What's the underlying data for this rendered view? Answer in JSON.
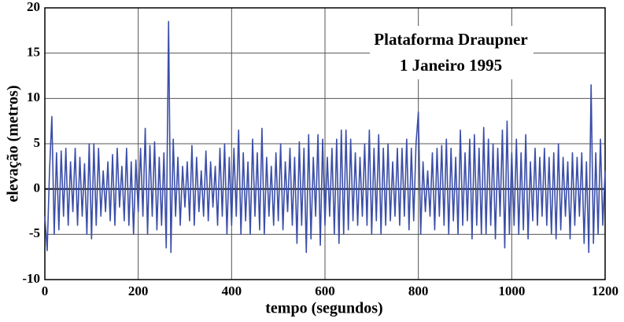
{
  "chart_data": {
    "type": "line",
    "title": "Plataforma Draupner",
    "subtitle": "1 Janeiro 1995",
    "xlabel": "tempo (segundos)",
    "ylabel": "elevação (metros)",
    "xlim": [
      0,
      1200
    ],
    "ylim": [
      -10,
      20
    ],
    "xticks": [
      0,
      200,
      400,
      600,
      800,
      1000,
      1200
    ],
    "yticks": [
      -10,
      -5,
      0,
      5,
      10,
      15,
      20
    ],
    "grid": true,
    "x": [
      0,
      5,
      10,
      15,
      20,
      25,
      30,
      35,
      40,
      45,
      50,
      55,
      60,
      65,
      70,
      75,
      80,
      85,
      90,
      95,
      100,
      105,
      110,
      115,
      120,
      125,
      130,
      135,
      140,
      145,
      150,
      155,
      160,
      165,
      170,
      175,
      180,
      185,
      190,
      195,
      200,
      205,
      210,
      215,
      220,
      225,
      230,
      235,
      240,
      245,
      250,
      255,
      260,
      265,
      270,
      275,
      280,
      285,
      290,
      295,
      300,
      305,
      310,
      315,
      320,
      325,
      330,
      335,
      340,
      345,
      350,
      355,
      360,
      365,
      370,
      375,
      380,
      385,
      390,
      395,
      400,
      405,
      410,
      415,
      420,
      425,
      430,
      435,
      440,
      445,
      450,
      455,
      460,
      465,
      470,
      475,
      480,
      485,
      490,
      495,
      500,
      505,
      510,
      515,
      520,
      525,
      530,
      535,
      540,
      545,
      550,
      555,
      560,
      565,
      570,
      575,
      580,
      585,
      590,
      595,
      600,
      605,
      610,
      615,
      620,
      625,
      630,
      635,
      640,
      645,
      650,
      655,
      660,
      665,
      670,
      675,
      680,
      685,
      690,
      695,
      700,
      705,
      710,
      715,
      720,
      725,
      730,
      735,
      740,
      745,
      750,
      755,
      760,
      765,
      770,
      775,
      780,
      785,
      790,
      795,
      800,
      805,
      810,
      815,
      820,
      825,
      830,
      835,
      840,
      845,
      850,
      855,
      860,
      865,
      870,
      875,
      880,
      885,
      890,
      895,
      900,
      905,
      910,
      915,
      920,
      925,
      930,
      935,
      940,
      945,
      950,
      955,
      960,
      965,
      970,
      975,
      980,
      985,
      990,
      995,
      1000,
      1005,
      1010,
      1015,
      1020,
      1025,
      1030,
      1035,
      1040,
      1045,
      1050,
      1055,
      1060,
      1065,
      1070,
      1075,
      1080,
      1085,
      1090,
      1095,
      1100,
      1105,
      1110,
      1115,
      1120,
      1125,
      1130,
      1135,
      1140,
      1145,
      1150,
      1155,
      1160,
      1165,
      1170,
      1175,
      1180,
      1185,
      1190,
      1195,
      1200
    ],
    "series": [
      {
        "color": "#3b4ea8",
        "values": [
          -3,
          -6.8,
          2,
          8,
          -5,
          4,
          -4.5,
          4.2,
          -3,
          4.5,
          -4,
          3,
          -2.5,
          4.5,
          -4,
          3.5,
          -3,
          2.8,
          -5,
          5,
          -5.5,
          5,
          -4,
          4.5,
          -3,
          2,
          -2.5,
          3,
          -3.5,
          3.8,
          -4,
          4.5,
          -2,
          2.5,
          -3.5,
          4.5,
          -4,
          3,
          -5,
          3.2,
          -2.5,
          4.5,
          -3,
          6.7,
          -5,
          4.8,
          -3,
          5.2,
          -4.5,
          3.5,
          -4,
          4,
          -6.5,
          18.5,
          -7,
          5.5,
          -3,
          3.5,
          -4,
          2.5,
          -2,
          3,
          -3.5,
          4.8,
          -4,
          3.5,
          -2.5,
          2,
          -3,
          4.2,
          -3.5,
          3,
          -2,
          2.5,
          -4,
          4.5,
          -3,
          5,
          -5,
          3.5,
          -4,
          4.5,
          -3,
          6.5,
          -5,
          4,
          -3.5,
          3,
          -5,
          5.5,
          -3,
          4,
          -4.5,
          6.7,
          -5,
          3.5,
          -3,
          2.5,
          -4,
          4,
          -3.5,
          5,
          -4.5,
          3,
          -2.5,
          4.5,
          -4,
          3.5,
          -6,
          5.2,
          -4,
          4.5,
          -7,
          6,
          -5.5,
          3.5,
          -3,
          6,
          -6.2,
          5.5,
          -4,
          3.5,
          -3,
          4.5,
          -5,
          5.5,
          -6,
          6.5,
          -5,
          6.5,
          -4.5,
          5.5,
          -3.5,
          4,
          -4,
          3.5,
          -3,
          5,
          -4,
          6.5,
          -5,
          4.5,
          -3.5,
          6,
          -5,
          4.5,
          -4,
          5,
          -3.5,
          3,
          -3,
          4.5,
          -4,
          4.5,
          -3,
          5.5,
          -4.5,
          4.5,
          -3.5,
          5,
          8.5,
          -5,
          3,
          -2.5,
          2,
          -3,
          4,
          -4.5,
          4.5,
          -3,
          4.8,
          -4,
          5.5,
          -5,
          4.5,
          -3.5,
          3.5,
          -5,
          6.5,
          -4,
          4,
          -3.5,
          5.5,
          -5.5,
          6,
          -4,
          4.5,
          -5,
          6.8,
          -5,
          5.5,
          -4,
          5,
          -5.5,
          4.5,
          -3,
          6.5,
          -6.5,
          7.5,
          -5,
          4,
          -4,
          5.5,
          -5,
          4,
          -4.5,
          6,
          -5.5,
          3,
          -3.5,
          4.5,
          -4,
          3.5,
          -3,
          4.5,
          -4,
          3.5,
          -5,
          4,
          -5.5,
          5,
          -4.5,
          3.5,
          -3,
          3,
          -5.5,
          4,
          -4,
          3.5,
          -3,
          4,
          -6,
          3,
          -7,
          11.5,
          -6,
          4,
          -5,
          5.5,
          -4,
          2
        ]
      }
    ]
  }
}
